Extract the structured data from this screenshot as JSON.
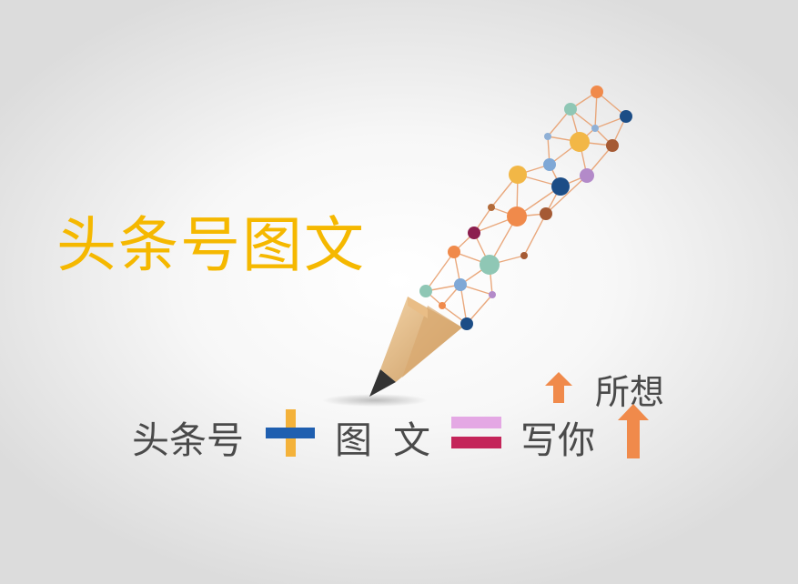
{
  "title": "头条号图文",
  "equation": {
    "word1": "头条号",
    "word2": "图",
    "word3": "文",
    "word4": "写你",
    "word5": "所想"
  },
  "icons": {
    "pencil": "network-pencil-icon",
    "plus": "plus-icon",
    "equals": "equals-icon",
    "arrow_small": "arrow-up-icon",
    "arrow_large": "arrow-up-icon"
  },
  "colors": {
    "title": "#f5b800",
    "text": "#4a4a4a",
    "plus_blue": "#1f5fb0",
    "plus_yellow": "#f4b23a",
    "equals_top": "#e4a8e4",
    "equals_bottom": "#c4255a",
    "arrow": "#f08a4b"
  }
}
